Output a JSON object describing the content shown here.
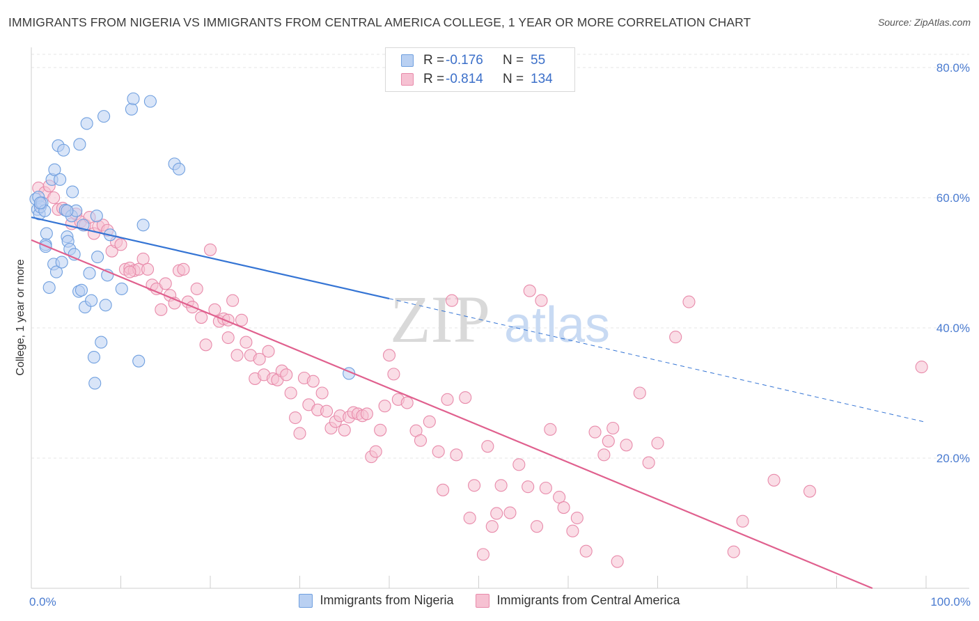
{
  "title": "IMMIGRANTS FROM NIGERIA VS IMMIGRANTS FROM CENTRAL AMERICA COLLEGE, 1 YEAR OR MORE CORRELATION CHART",
  "source": "Source: ZipAtlas.com",
  "watermark": {
    "zip": "ZIP",
    "atlas": "atlas"
  },
  "legend": {
    "r_label": "R =",
    "n_label": "N =",
    "rows": [
      {
        "name": "Immigrants from Nigeria",
        "r": "-0.176",
        "n": "55"
      },
      {
        "name": "Immigrants from Central America",
        "r": "-0.814",
        "n": "134"
      }
    ]
  },
  "colors": {
    "nigeria_fill": "#b9d0f2",
    "nigeria_stroke": "#6f9fdf",
    "nigeria_line": "#3474d4",
    "central_fill": "#f6c1d2",
    "central_stroke": "#e88aaa",
    "central_line": "#e0608e",
    "grid": "#e6e6e6",
    "tick_text": "#4a7bd0"
  },
  "chart_data": {
    "type": "scatter",
    "title": "IMMIGRANTS FROM NIGERIA VS IMMIGRANTS FROM CENTRAL AMERICA COLLEGE, 1 YEAR OR MORE CORRELATION CHART",
    "xlabel": "",
    "ylabel": "College, 1 year or more",
    "xlim": [
      0,
      100
    ],
    "ylim": [
      0,
      80
    ],
    "x_tick_labels": [
      "0.0%",
      "100.0%"
    ],
    "y_ticks": [
      20,
      40,
      60,
      80
    ],
    "y_tick_labels": [
      "20.0%",
      "40.0%",
      "60.0%",
      "80.0%"
    ],
    "grid": true,
    "legend_position": "top-center",
    "series": [
      {
        "name": "Immigrants from Nigeria",
        "r": -0.176,
        "n": 55,
        "trend": {
          "x0": 0,
          "y0": 57.0,
          "x1": 40,
          "y1": 44.5,
          "dash_x1": 100,
          "dash_y1": 25.5
        },
        "points": [
          [
            0.5,
            59.8
          ],
          [
            0.7,
            58.2
          ],
          [
            0.9,
            57.5
          ],
          [
            0.8,
            60.1
          ],
          [
            1.0,
            58.6
          ],
          [
            1.2,
            59.2
          ],
          [
            1.5,
            58.0
          ],
          [
            1.6,
            52.8
          ],
          [
            1.7,
            54.5
          ],
          [
            1.6,
            52.5
          ],
          [
            2.0,
            46.2
          ],
          [
            2.3,
            62.8
          ],
          [
            2.5,
            49.8
          ],
          [
            2.6,
            64.3
          ],
          [
            2.8,
            48.6
          ],
          [
            3.0,
            68.0
          ],
          [
            3.2,
            62.8
          ],
          [
            3.4,
            50.1
          ],
          [
            3.6,
            67.3
          ],
          [
            3.8,
            58.1
          ],
          [
            4.0,
            54.0
          ],
          [
            4.1,
            53.3
          ],
          [
            4.3,
            52.1
          ],
          [
            4.5,
            57.2
          ],
          [
            4.6,
            60.9
          ],
          [
            4.8,
            51.3
          ],
          [
            5.0,
            58.0
          ],
          [
            5.3,
            45.6
          ],
          [
            5.4,
            68.2
          ],
          [
            5.6,
            45.8
          ],
          [
            5.8,
            55.8
          ],
          [
            6.0,
            43.2
          ],
          [
            6.2,
            71.4
          ],
          [
            6.5,
            48.4
          ],
          [
            6.7,
            44.2
          ],
          [
            7.0,
            35.5
          ],
          [
            7.1,
            31.5
          ],
          [
            7.3,
            57.2
          ],
          [
            7.4,
            50.9
          ],
          [
            7.8,
            37.8
          ],
          [
            8.1,
            72.5
          ],
          [
            8.3,
            43.5
          ],
          [
            8.5,
            48.1
          ],
          [
            8.8,
            54.3
          ],
          [
            10.1,
            46.0
          ],
          [
            11.2,
            73.6
          ],
          [
            11.4,
            75.2
          ],
          [
            12.0,
            34.9
          ],
          [
            12.5,
            55.8
          ],
          [
            13.3,
            74.8
          ],
          [
            16.0,
            65.2
          ],
          [
            16.5,
            64.4
          ],
          [
            4.0,
            58.0
          ],
          [
            1.0,
            59.2
          ],
          [
            35.5,
            33.0
          ]
        ]
      },
      {
        "name": "Immigrants from Central America",
        "r": -0.814,
        "n": 134,
        "trend": {
          "x0": 0,
          "y0": 53.5,
          "x1": 94,
          "y1": 0
        },
        "points": [
          [
            0.8,
            61.5
          ],
          [
            1.0,
            59.0
          ],
          [
            1.5,
            60.8
          ],
          [
            2.0,
            61.8
          ],
          [
            2.5,
            60.0
          ],
          [
            3.0,
            58.2
          ],
          [
            3.5,
            58.4
          ],
          [
            4.0,
            58.0
          ],
          [
            4.5,
            56.0
          ],
          [
            5.0,
            57.5
          ],
          [
            5.5,
            56.3
          ],
          [
            6.0,
            55.8
          ],
          [
            6.5,
            57.0
          ],
          [
            7.0,
            54.5
          ],
          [
            7.5,
            55.6
          ],
          [
            8.0,
            55.8
          ],
          [
            8.5,
            55.0
          ],
          [
            9.0,
            51.8
          ],
          [
            9.5,
            53.2
          ],
          [
            10.0,
            52.8
          ],
          [
            10.5,
            49.0
          ],
          [
            11.0,
            49.2
          ],
          [
            11.5,
            48.8
          ],
          [
            12.0,
            49.0
          ],
          [
            12.5,
            50.6
          ],
          [
            13.0,
            49.0
          ],
          [
            13.5,
            46.6
          ],
          [
            14.0,
            46.0
          ],
          [
            14.5,
            42.8
          ],
          [
            15.0,
            46.8
          ],
          [
            15.5,
            45.0
          ],
          [
            16.0,
            43.8
          ],
          [
            16.5,
            48.8
          ],
          [
            17.0,
            49.0
          ],
          [
            17.5,
            44.0
          ],
          [
            18.0,
            43.2
          ],
          [
            18.5,
            46.0
          ],
          [
            19.0,
            41.6
          ],
          [
            19.5,
            37.4
          ],
          [
            20.0,
            52.0
          ],
          [
            20.5,
            42.8
          ],
          [
            21.0,
            41.0
          ],
          [
            21.5,
            41.4
          ],
          [
            22.0,
            38.5
          ],
          [
            22.5,
            44.2
          ],
          [
            23.0,
            35.8
          ],
          [
            23.5,
            41.2
          ],
          [
            24.0,
            37.8
          ],
          [
            24.5,
            35.8
          ],
          [
            25.0,
            32.2
          ],
          [
            25.5,
            35.2
          ],
          [
            26.0,
            32.8
          ],
          [
            26.5,
            36.4
          ],
          [
            27.0,
            32.2
          ],
          [
            27.5,
            32.0
          ],
          [
            28.0,
            33.4
          ],
          [
            28.5,
            32.8
          ],
          [
            29.0,
            30.0
          ],
          [
            29.5,
            26.2
          ],
          [
            30.0,
            23.8
          ],
          [
            30.5,
            32.3
          ],
          [
            31.0,
            28.2
          ],
          [
            31.5,
            31.8
          ],
          [
            32.0,
            27.4
          ],
          [
            32.5,
            30.0
          ],
          [
            33.0,
            27.2
          ],
          [
            33.5,
            24.6
          ],
          [
            34.0,
            25.6
          ],
          [
            34.5,
            26.5
          ],
          [
            35.0,
            24.3
          ],
          [
            35.5,
            26.3
          ],
          [
            36.0,
            27.0
          ],
          [
            36.5,
            26.8
          ],
          [
            37.0,
            26.5
          ],
          [
            37.5,
            26.8
          ],
          [
            38.0,
            20.2
          ],
          [
            38.5,
            21.0
          ],
          [
            39.0,
            24.3
          ],
          [
            39.5,
            28.0
          ],
          [
            40.0,
            35.8
          ],
          [
            40.5,
            32.9
          ],
          [
            41.0,
            29.0
          ],
          [
            42.0,
            28.5
          ],
          [
            43.0,
            24.2
          ],
          [
            43.5,
            22.7
          ],
          [
            44.5,
            25.6
          ],
          [
            45.5,
            21.0
          ],
          [
            46.0,
            15.1
          ],
          [
            46.5,
            29.0
          ],
          [
            47.0,
            44.2
          ],
          [
            47.5,
            20.5
          ],
          [
            48.5,
            29.3
          ],
          [
            49.0,
            10.8
          ],
          [
            49.5,
            15.8
          ],
          [
            50.5,
            5.2
          ],
          [
            51.0,
            21.8
          ],
          [
            51.5,
            9.5
          ],
          [
            52.0,
            11.5
          ],
          [
            52.5,
            15.8
          ],
          [
            53.5,
            11.6
          ],
          [
            54.5,
            19.0
          ],
          [
            55.5,
            15.6
          ],
          [
            55.7,
            45.7
          ],
          [
            56.5,
            9.5
          ],
          [
            57.0,
            44.2
          ],
          [
            57.5,
            15.4
          ],
          [
            58.0,
            24.4
          ],
          [
            59.0,
            14.0
          ],
          [
            59.5,
            12.4
          ],
          [
            60.5,
            8.8
          ],
          [
            61.0,
            10.8
          ],
          [
            62.0,
            5.7
          ],
          [
            63.0,
            24.0
          ],
          [
            64.0,
            20.5
          ],
          [
            64.5,
            22.6
          ],
          [
            65.0,
            24.6
          ],
          [
            65.5,
            4.1
          ],
          [
            66.5,
            22.0
          ],
          [
            68.0,
            30.0
          ],
          [
            69.0,
            19.3
          ],
          [
            70.0,
            22.3
          ],
          [
            72.0,
            38.6
          ],
          [
            73.5,
            44.0
          ],
          [
            78.5,
            5.6
          ],
          [
            79.5,
            10.3
          ],
          [
            83.0,
            16.6
          ],
          [
            87.0,
            14.9
          ],
          [
            99.5,
            34.0
          ],
          [
            11.0,
            48.6
          ],
          [
            22.0,
            41.2
          ]
        ]
      }
    ]
  }
}
